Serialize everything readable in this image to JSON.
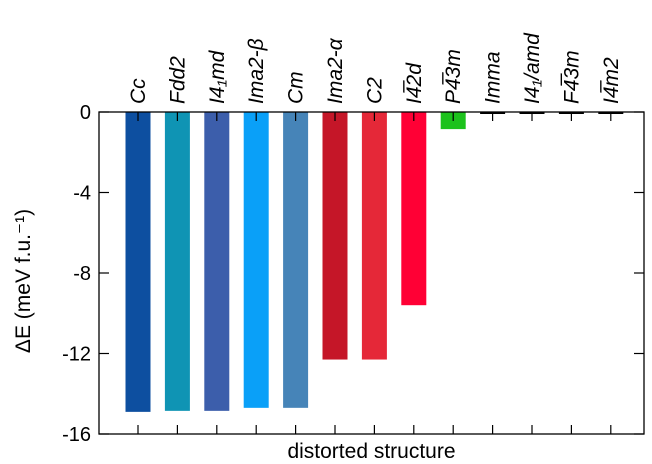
{
  "chart_data": {
    "type": "bar",
    "xlabel": "distorted structure",
    "ylabel": "ΔE (meV f.u.⁻¹)",
    "ylim": [
      -16,
      0
    ],
    "yticks": [
      "0",
      "-4",
      "-8",
      "-12",
      "-16"
    ],
    "ytick_values": [
      0,
      -4,
      -8,
      -12,
      -16
    ],
    "categories": [
      "Cc",
      "Fdd2",
      "I4₁md",
      "Ima2-β",
      "Cm",
      "Ima2-α",
      "C2",
      "I4̅2d",
      "P4̅3m",
      "Imma",
      "I4₁/amd",
      "F4̅3m",
      "I4̅m2"
    ],
    "values": [
      -14.9,
      -14.85,
      -14.85,
      -14.7,
      -14.7,
      -12.3,
      -12.3,
      -9.6,
      -0.85,
      -0.08,
      -0.05,
      -0.05,
      -0.05
    ],
    "colors": [
      "#0d4fa0",
      "#0f94b4",
      "#3c5eab",
      "#0aa0f8",
      "#4684b8",
      "#c51628",
      "#e52838",
      "#ff0035",
      "#1cc21c",
      "#000000",
      "#000000",
      "#000000",
      "#000000"
    ],
    "grid": false
  }
}
